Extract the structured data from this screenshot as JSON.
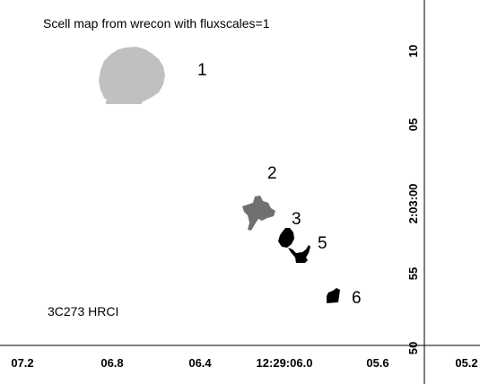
{
  "chart_data": {
    "type": "image",
    "title": "Scell map from wrecon with fluxscales=1",
    "source_label": "3C273 HRCI",
    "x_ticks": [
      "07.2",
      "06.8",
      "06.4",
      "12:29:06.0",
      "05.6",
      "05.2"
    ],
    "y_ticks": [
      "10",
      "05",
      "2:03:00",
      "55",
      "50"
    ],
    "sources": [
      {
        "id": "1",
        "color": "#c0c0c0"
      },
      {
        "id": "2",
        "color": "#707070"
      },
      {
        "id": "3",
        "color": "#000000"
      },
      {
        "id": "5",
        "color": "#000000"
      },
      {
        "id": "6",
        "color": "#000000"
      }
    ]
  }
}
